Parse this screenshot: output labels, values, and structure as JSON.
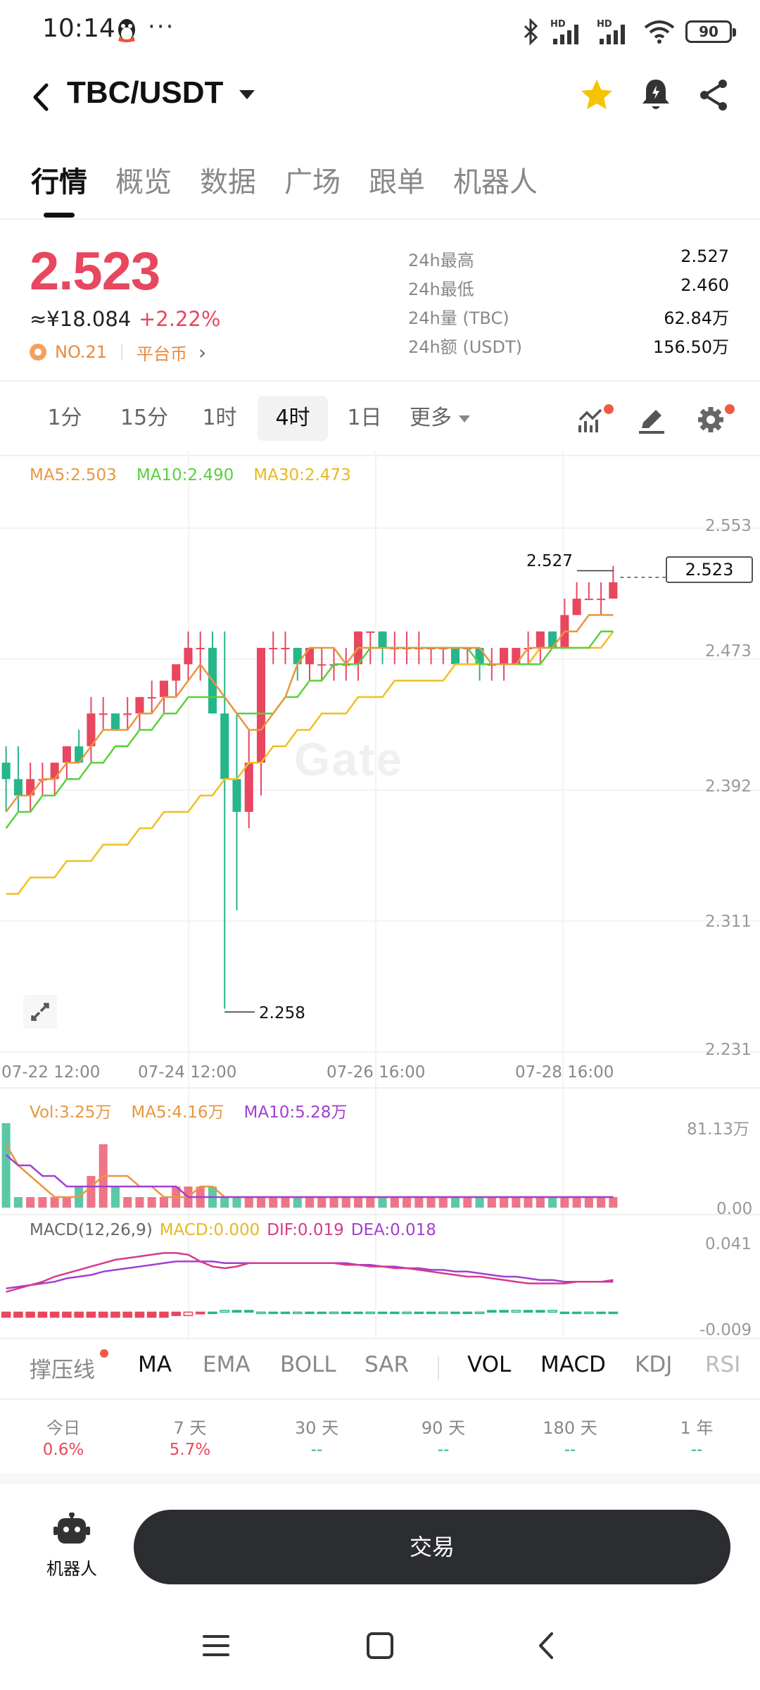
{
  "status": {
    "time": "10:14",
    "dots": "···",
    "battery": "90",
    "signal1_label": "HD",
    "signal2_label": "HD"
  },
  "header": {
    "pair": "TBC/USDT"
  },
  "tabs": [
    "行情",
    "概览",
    "数据",
    "广场",
    "跟单",
    "机器人"
  ],
  "ticker": {
    "price": "2.523",
    "cny": "≈¥18.084",
    "change": "+2.22%",
    "rank": "NO.21",
    "category": "平台币"
  },
  "stats": [
    {
      "label": "24h最高",
      "value": "2.527"
    },
    {
      "label": "24h最低",
      "value": "2.460"
    },
    {
      "label": "24h量 (TBC)",
      "value": "62.84万"
    },
    {
      "label": "24h额 (USDT)",
      "value": "156.50万"
    }
  ],
  "timeframes": [
    "1分",
    "15分",
    "1时",
    "4时",
    "1日",
    "更多"
  ],
  "active_timeframe": "4时",
  "colors": {
    "up": "#e8475f",
    "down": "#26b68a",
    "ma5": "#e8973e",
    "ma10": "#5ad13b",
    "ma30": "#f0c020",
    "dif": "#d63b8a",
    "dea": "#a33fd1"
  },
  "chart_legend": {
    "ma5": "MA5:2.503",
    "ma10": "MA10:2.490",
    "ma30": "MA30:2.473"
  },
  "chart_data": {
    "type": "candlestick",
    "price_axis": [
      "2.553",
      "2.473",
      "2.392",
      "2.311",
      "2.231"
    ],
    "ylim": [
      2.231,
      2.553
    ],
    "x_labels": [
      "07-22 12:00",
      "07-24 12:00",
      "07-26 16:00",
      "07-28 16:00"
    ],
    "last_price": "2.523",
    "high_label": "2.527",
    "low_label": "2.258",
    "watermark": "Gate",
    "candles": [
      [
        2.41,
        2.4,
        2.42,
        2.38
      ],
      [
        2.4,
        2.39,
        2.42,
        2.38
      ],
      [
        2.39,
        2.4,
        2.41,
        2.38
      ],
      [
        2.4,
        2.4,
        2.41,
        2.39
      ],
      [
        2.4,
        2.41,
        2.41,
        2.39
      ],
      [
        2.41,
        2.42,
        2.42,
        2.4
      ],
      [
        2.42,
        2.41,
        2.43,
        2.41
      ],
      [
        2.42,
        2.44,
        2.45,
        2.41
      ],
      [
        2.44,
        2.44,
        2.45,
        2.43
      ],
      [
        2.44,
        2.43,
        2.44,
        2.43
      ],
      [
        2.44,
        2.44,
        2.45,
        2.43
      ],
      [
        2.44,
        2.45,
        2.45,
        2.43
      ],
      [
        2.45,
        2.45,
        2.46,
        2.44
      ],
      [
        2.45,
        2.46,
        2.46,
        2.44
      ],
      [
        2.46,
        2.47,
        2.47,
        2.45
      ],
      [
        2.47,
        2.48,
        2.49,
        2.46
      ],
      [
        2.48,
        2.48,
        2.49,
        2.46
      ],
      [
        2.48,
        2.44,
        2.49,
        2.44
      ],
      [
        2.44,
        2.4,
        2.49,
        2.26
      ],
      [
        2.4,
        2.38,
        2.44,
        2.32
      ],
      [
        2.38,
        2.41,
        2.43,
        2.37
      ],
      [
        2.41,
        2.48,
        2.48,
        2.39
      ],
      [
        2.48,
        2.48,
        2.49,
        2.47
      ],
      [
        2.48,
        2.48,
        2.49,
        2.47
      ],
      [
        2.48,
        2.47,
        2.48,
        2.46
      ],
      [
        2.47,
        2.48,
        2.48,
        2.46
      ],
      [
        2.47,
        2.47,
        2.48,
        2.46
      ],
      [
        2.47,
        2.47,
        2.48,
        2.46
      ],
      [
        2.47,
        2.47,
        2.48,
        2.46
      ],
      [
        2.47,
        2.49,
        2.49,
        2.46
      ],
      [
        2.49,
        2.49,
        2.49,
        2.47
      ],
      [
        2.49,
        2.48,
        2.49,
        2.47
      ],
      [
        2.48,
        2.48,
        2.49,
        2.47
      ],
      [
        2.48,
        2.48,
        2.49,
        2.47
      ],
      [
        2.48,
        2.48,
        2.49,
        2.47
      ],
      [
        2.48,
        2.48,
        2.48,
        2.47
      ],
      [
        2.48,
        2.48,
        2.48,
        2.47
      ],
      [
        2.48,
        2.47,
        2.48,
        2.47
      ],
      [
        2.48,
        2.48,
        2.48,
        2.47
      ],
      [
        2.48,
        2.47,
        2.48,
        2.46
      ],
      [
        2.47,
        2.47,
        2.48,
        2.46
      ],
      [
        2.47,
        2.48,
        2.48,
        2.46
      ],
      [
        2.47,
        2.48,
        2.48,
        2.47
      ],
      [
        2.48,
        2.48,
        2.49,
        2.47
      ],
      [
        2.48,
        2.49,
        2.49,
        2.47
      ],
      [
        2.49,
        2.48,
        2.49,
        2.48
      ],
      [
        2.48,
        2.5,
        2.51,
        2.48
      ],
      [
        2.5,
        2.51,
        2.52,
        2.5
      ],
      [
        2.51,
        2.51,
        2.52,
        2.51
      ],
      [
        2.51,
        2.51,
        2.52,
        2.5
      ],
      [
        2.51,
        2.52,
        2.53,
        2.51
      ]
    ],
    "ma5_values": [
      2.38,
      2.39,
      2.39,
      2.4,
      2.4,
      2.41,
      2.41,
      2.42,
      2.43,
      2.43,
      2.43,
      2.44,
      2.44,
      2.45,
      2.45,
      2.46,
      2.47,
      2.46,
      2.45,
      2.44,
      2.43,
      2.43,
      2.44,
      2.45,
      2.47,
      2.48,
      2.48,
      2.48,
      2.47,
      2.48,
      2.48,
      2.48,
      2.48,
      2.48,
      2.48,
      2.48,
      2.48,
      2.48,
      2.48,
      2.48,
      2.47,
      2.47,
      2.47,
      2.48,
      2.48,
      2.48,
      2.49,
      2.49,
      2.5,
      2.5,
      2.5
    ],
    "ma10_values": [
      2.37,
      2.38,
      2.38,
      2.39,
      2.39,
      2.4,
      2.4,
      2.41,
      2.41,
      2.42,
      2.42,
      2.43,
      2.43,
      2.44,
      2.44,
      2.45,
      2.45,
      2.45,
      2.45,
      2.44,
      2.44,
      2.44,
      2.44,
      2.45,
      2.45,
      2.46,
      2.46,
      2.47,
      2.47,
      2.47,
      2.48,
      2.48,
      2.48,
      2.48,
      2.48,
      2.48,
      2.48,
      2.48,
      2.48,
      2.47,
      2.47,
      2.47,
      2.47,
      2.47,
      2.47,
      2.48,
      2.48,
      2.48,
      2.48,
      2.49,
      2.49
    ],
    "ma30_values": [
      2.33,
      2.33,
      2.34,
      2.34,
      2.34,
      2.35,
      2.35,
      2.35,
      2.36,
      2.36,
      2.36,
      2.37,
      2.37,
      2.38,
      2.38,
      2.38,
      2.39,
      2.39,
      2.4,
      2.4,
      2.41,
      2.41,
      2.42,
      2.42,
      2.43,
      2.43,
      2.44,
      2.44,
      2.44,
      2.45,
      2.45,
      2.45,
      2.46,
      2.46,
      2.46,
      2.46,
      2.46,
      2.47,
      2.47,
      2.47,
      2.47,
      2.47,
      2.47,
      2.47,
      2.48,
      2.48,
      2.48,
      2.48,
      2.48,
      2.48,
      2.49
    ]
  },
  "volume": {
    "legend_vol": "Vol:3.25万",
    "legend_ma5": "MA5:4.16万",
    "legend_ma10": "MA10:5.28万",
    "axis_top": "81.13万",
    "axis_bottom": "0.00",
    "values": [
      8,
      1,
      1,
      1,
      1,
      1,
      2,
      3,
      6,
      2,
      1,
      1,
      1,
      1,
      2,
      2,
      2,
      2,
      1,
      1,
      1,
      1,
      1,
      1,
      1,
      1,
      1,
      1,
      1,
      1,
      1,
      1,
      1,
      1,
      1,
      1,
      1,
      1,
      1,
      1,
      1,
      1,
      1,
      1,
      1,
      1,
      1,
      1,
      1,
      1,
      1
    ],
    "ma5_values": [
      6,
      4,
      3,
      2,
      1,
      1,
      1,
      2,
      3,
      3,
      3,
      2,
      2,
      1,
      1,
      1,
      2,
      2,
      1,
      1,
      1,
      1,
      1,
      1,
      1,
      1,
      1,
      1,
      1,
      1,
      1,
      1,
      1,
      1,
      1,
      1,
      1,
      1,
      1,
      1,
      1,
      1,
      1,
      1,
      1,
      1,
      1,
      1,
      1,
      1,
      1
    ],
    "ma10_values": [
      5,
      4,
      4,
      3,
      3,
      2,
      2,
      2,
      2,
      2,
      2,
      2,
      2,
      2,
      2,
      1,
      1,
      1,
      1,
      1,
      1,
      1,
      1,
      1,
      1,
      1,
      1,
      1,
      1,
      1,
      1,
      1,
      1,
      1,
      1,
      1,
      1,
      1,
      1,
      1,
      1,
      1,
      1,
      1,
      1,
      1,
      1,
      1,
      1,
      1,
      1
    ]
  },
  "macd": {
    "legend_title": "MACD(12,26,9)",
    "legend_macd": "MACD:0.000",
    "legend_dif": "DIF:0.019",
    "legend_dea": "DEA:0.018",
    "axis_top": "0.041",
    "axis_bottom": "-0.009",
    "hist": [
      -0.003,
      -0.003,
      -0.003,
      -0.003,
      -0.003,
      -0.003,
      -0.003,
      -0.003,
      -0.003,
      -0.003,
      -0.003,
      -0.003,
      -0.003,
      -0.003,
      -0.002,
      -0.002,
      -0.001,
      0.0,
      0.001,
      0.001,
      0.001,
      0.0,
      0.0,
      0.0,
      0.0,
      0.0,
      0.0,
      0.0,
      0.0,
      0.0,
      0.0,
      0.0,
      0.0,
      0.0,
      0.0,
      0.0,
      0.0,
      0.0,
      0.0,
      0.0,
      0.001,
      0.001,
      0.001,
      0.001,
      0.001,
      0.001,
      0.0,
      0.0,
      0.0,
      0.0,
      0.0
    ],
    "dif": [
      0.012,
      0.014,
      0.016,
      0.018,
      0.021,
      0.023,
      0.025,
      0.027,
      0.029,
      0.031,
      0.032,
      0.033,
      0.034,
      0.035,
      0.035,
      0.034,
      0.03,
      0.027,
      0.026,
      0.027,
      0.029,
      0.029,
      0.029,
      0.029,
      0.029,
      0.029,
      0.029,
      0.029,
      0.028,
      0.028,
      0.027,
      0.027,
      0.026,
      0.026,
      0.025,
      0.024,
      0.023,
      0.022,
      0.021,
      0.021,
      0.02,
      0.019,
      0.018,
      0.017,
      0.017,
      0.017,
      0.017,
      0.018,
      0.018,
      0.018,
      0.019
    ],
    "dea": [
      0.014,
      0.015,
      0.016,
      0.017,
      0.018,
      0.02,
      0.021,
      0.022,
      0.024,
      0.025,
      0.026,
      0.027,
      0.028,
      0.029,
      0.03,
      0.03,
      0.03,
      0.03,
      0.029,
      0.029,
      0.029,
      0.029,
      0.029,
      0.029,
      0.029,
      0.029,
      0.029,
      0.029,
      0.029,
      0.028,
      0.028,
      0.027,
      0.027,
      0.026,
      0.026,
      0.025,
      0.025,
      0.024,
      0.024,
      0.023,
      0.022,
      0.021,
      0.021,
      0.02,
      0.019,
      0.019,
      0.018,
      0.018,
      0.018,
      0.018,
      0.018
    ]
  },
  "indicators": {
    "support": "撑压线",
    "items": [
      "MA",
      "EMA",
      "BOLL",
      "SAR",
      "VOL",
      "MACD",
      "KDJ",
      "RSI"
    ]
  },
  "performance": [
    {
      "label": "今日",
      "value": "0.6%"
    },
    {
      "label": "7 天",
      "value": "5.7%"
    },
    {
      "label": "30 天",
      "value": "--"
    },
    {
      "label": "90 天",
      "value": "--"
    },
    {
      "label": "180 天",
      "value": "--"
    },
    {
      "label": "1 年",
      "value": "--"
    }
  ],
  "bottom": {
    "robot_label": "机器人",
    "trade_label": "交易"
  }
}
